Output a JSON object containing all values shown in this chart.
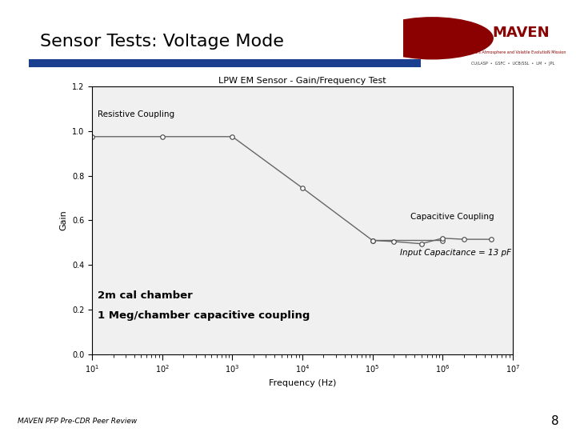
{
  "title": "Sensor Tests: Voltage Mode",
  "chart_title": "LPW EM Sensor - Gain/Frequency Test",
  "xlabel": "Frequency (Hz)",
  "ylabel": "Gain",
  "footer": "MAVEN PFP Pre-CDR Peer Review",
  "page_number": "8",
  "annotation1": "Resistive Coupling",
  "annotation2": "Capacitive Coupling",
  "annotation3": "Input Capacitance = 13 pF",
  "annotation4_line1": "2m cal chamber",
  "annotation4_line2": "1 Meg/chamber capacitive coupling",
  "resistive_x": [
    10,
    100,
    1000,
    10000,
    100000,
    1000000
  ],
  "resistive_y": [
    0.975,
    0.975,
    0.975,
    0.745,
    0.51,
    0.51
  ],
  "capacitive_x": [
    100000,
    200000,
    500000,
    1000000,
    2000000,
    5000000
  ],
  "capacitive_y": [
    0.51,
    0.505,
    0.495,
    0.52,
    0.515,
    0.515
  ],
  "ylim": [
    0.0,
    1.2
  ],
  "line_color": "#666666",
  "marker_color": "#ffffff",
  "marker_edge_color": "#444444",
  "bg_color": "#f0f0f0",
  "slide_bg": "#ffffff",
  "title_color": "#000000",
  "header_line_color": "#1a3f8f"
}
